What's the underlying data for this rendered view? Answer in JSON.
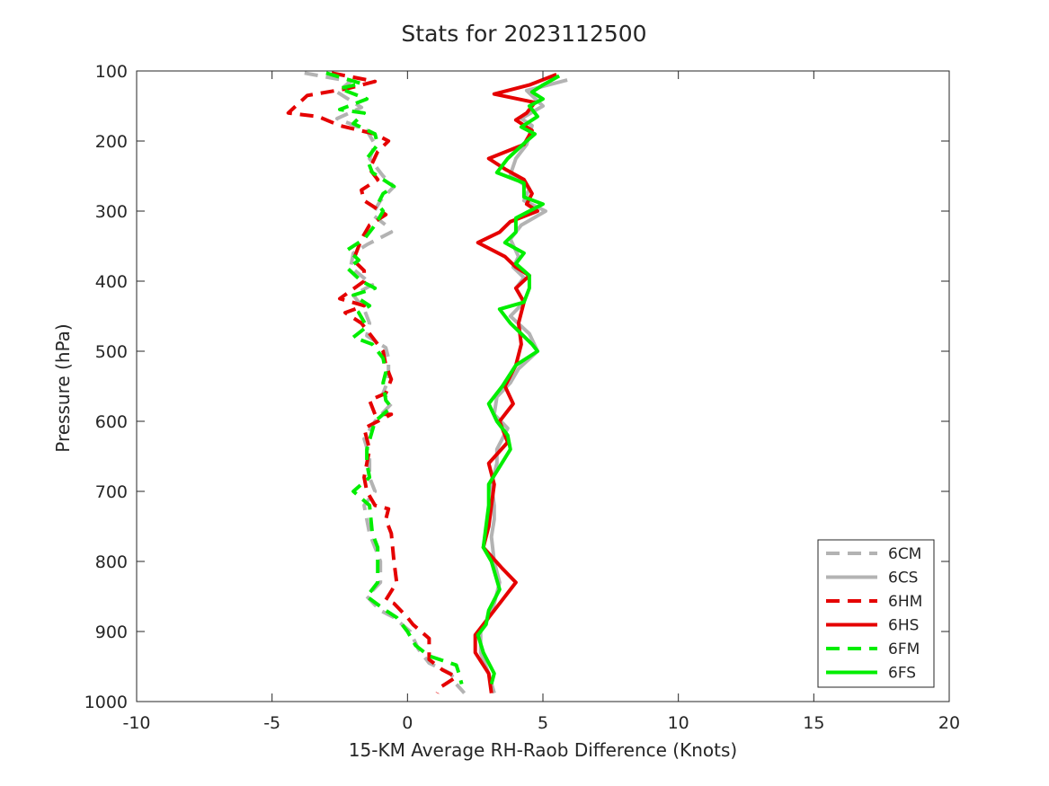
{
  "chart_data": {
    "type": "line",
    "title": "Stats for 2023112500",
    "xlabel": "15-KM Average RH-Raob Difference (Knots)",
    "ylabel": "Pressure (hPa)",
    "xlim": [
      -10,
      20
    ],
    "ylim": [
      100,
      1000
    ],
    "y_reversed": true,
    "grid": false,
    "legend_position": "bottom-right",
    "xticks": [
      -10,
      -5,
      0,
      5,
      10,
      15,
      20
    ],
    "yticks": [
      100,
      200,
      300,
      400,
      500,
      600,
      700,
      800,
      900,
      1000
    ],
    "series": [
      {
        "name": "6CM",
        "color": "#b3b3b3",
        "dash": "dashed",
        "points": [
          [
            -3.8,
            103
          ],
          [
            -2.1,
            115
          ],
          [
            -2.6,
            130
          ],
          [
            -1.7,
            152
          ],
          [
            -2.6,
            168
          ],
          [
            -1.5,
            185
          ],
          [
            -1.2,
            205
          ],
          [
            -1.4,
            225
          ],
          [
            -0.9,
            250
          ],
          [
            -0.5,
            265
          ],
          [
            -1.0,
            285
          ],
          [
            -1.3,
            305
          ],
          [
            -0.8,
            320
          ],
          [
            -0.6,
            330
          ],
          [
            -1.5,
            348
          ],
          [
            -2.0,
            360
          ],
          [
            -2.1,
            380
          ],
          [
            -1.3,
            405
          ],
          [
            -2.0,
            420
          ],
          [
            -1.6,
            440
          ],
          [
            -1.4,
            460
          ],
          [
            -1.5,
            478
          ],
          [
            -0.8,
            495
          ],
          [
            -0.7,
            510
          ],
          [
            -0.7,
            540
          ],
          [
            -0.9,
            560
          ],
          [
            -0.6,
            575
          ],
          [
            -1.2,
            600
          ],
          [
            -1.6,
            625
          ],
          [
            -1.4,
            650
          ],
          [
            -1.4,
            680
          ],
          [
            -1.2,
            700
          ],
          [
            -1.6,
            720
          ],
          [
            -1.5,
            740
          ],
          [
            -1.4,
            760
          ],
          [
            -1.2,
            780
          ],
          [
            -1.0,
            800
          ],
          [
            -1.0,
            830
          ],
          [
            -1.5,
            850
          ],
          [
            -1.0,
            870
          ],
          [
            -0.5,
            880
          ],
          [
            0.1,
            900
          ],
          [
            0.4,
            925
          ],
          [
            0.8,
            945
          ],
          [
            1.6,
            960
          ],
          [
            1.8,
            975
          ],
          [
            2.1,
            988
          ]
        ]
      },
      {
        "name": "6CS",
        "color": "#b3b3b3",
        "dash": "solid",
        "points": [
          [
            5.9,
            113
          ],
          [
            4.4,
            128
          ],
          [
            5.0,
            150
          ],
          [
            4.2,
            168
          ],
          [
            4.6,
            178
          ],
          [
            4.4,
            205
          ],
          [
            4.0,
            225
          ],
          [
            3.8,
            248
          ],
          [
            4.5,
            268
          ],
          [
            4.3,
            285
          ],
          [
            5.1,
            300
          ],
          [
            4.2,
            320
          ],
          [
            3.8,
            340
          ],
          [
            4.1,
            365
          ],
          [
            3.9,
            380
          ],
          [
            4.3,
            395
          ],
          [
            4.0,
            410
          ],
          [
            4.3,
            430
          ],
          [
            3.8,
            450
          ],
          [
            4.5,
            475
          ],
          [
            4.8,
            500
          ],
          [
            4.1,
            525
          ],
          [
            3.8,
            545
          ],
          [
            3.3,
            565
          ],
          [
            3.2,
            590
          ],
          [
            3.7,
            610
          ],
          [
            3.3,
            640
          ],
          [
            3.3,
            660
          ],
          [
            3.1,
            690
          ],
          [
            3.2,
            720
          ],
          [
            3.2,
            740
          ],
          [
            3.1,
            765
          ],
          [
            3.2,
            800
          ],
          [
            3.4,
            830
          ],
          [
            3.2,
            860
          ],
          [
            3.0,
            880
          ],
          [
            2.7,
            900
          ],
          [
            2.7,
            930
          ],
          [
            3.0,
            960
          ],
          [
            3.2,
            988
          ]
        ]
      },
      {
        "name": "6HM",
        "color": "#e50000",
        "dash": "dashed",
        "points": [
          [
            -2.8,
            103
          ],
          [
            -1.2,
            115
          ],
          [
            -2.2,
            125
          ],
          [
            -3.7,
            135
          ],
          [
            -4.4,
            160
          ],
          [
            -3.3,
            165
          ],
          [
            -2.5,
            178
          ],
          [
            -1.2,
            190
          ],
          [
            -0.7,
            200
          ],
          [
            -1.1,
            215
          ],
          [
            -1.4,
            240
          ],
          [
            -1.1,
            255
          ],
          [
            -1.7,
            270
          ],
          [
            -1.6,
            285
          ],
          [
            -1.2,
            295
          ],
          [
            -0.8,
            305
          ],
          [
            -1.4,
            320
          ],
          [
            -1.7,
            340
          ],
          [
            -2.0,
            370
          ],
          [
            -1.6,
            385
          ],
          [
            -1.6,
            400
          ],
          [
            -2.5,
            425
          ],
          [
            -1.6,
            435
          ],
          [
            -2.3,
            445
          ],
          [
            -1.7,
            460
          ],
          [
            -1.3,
            480
          ],
          [
            -0.9,
            500
          ],
          [
            -0.8,
            520
          ],
          [
            -0.6,
            540
          ],
          [
            -0.8,
            560
          ],
          [
            -1.4,
            570
          ],
          [
            -1.2,
            590
          ],
          [
            -0.6,
            590
          ],
          [
            -1.6,
            610
          ],
          [
            -1.4,
            640
          ],
          [
            -1.5,
            660
          ],
          [
            -1.6,
            680
          ],
          [
            -1.5,
            700
          ],
          [
            -1.2,
            720
          ],
          [
            -0.7,
            725
          ],
          [
            -0.8,
            740
          ],
          [
            -0.6,
            760
          ],
          [
            -0.5,
            800
          ],
          [
            -0.4,
            830
          ],
          [
            -0.8,
            855
          ],
          [
            -0.5,
            860
          ],
          [
            0.0,
            880
          ],
          [
            0.2,
            890
          ],
          [
            0.8,
            910
          ],
          [
            0.8,
            940
          ],
          [
            1.3,
            955
          ],
          [
            1.8,
            965
          ],
          [
            1.2,
            980
          ],
          [
            1.1,
            988
          ]
        ]
      },
      {
        "name": "6HS",
        "color": "#e50000",
        "dash": "solid",
        "points": [
          [
            5.5,
            105
          ],
          [
            4.5,
            120
          ],
          [
            3.2,
            133
          ],
          [
            4.7,
            145
          ],
          [
            4.4,
            160
          ],
          [
            4.0,
            170
          ],
          [
            4.6,
            185
          ],
          [
            4.3,
            205
          ],
          [
            3.0,
            225
          ],
          [
            3.6,
            240
          ],
          [
            4.3,
            255
          ],
          [
            4.6,
            275
          ],
          [
            4.4,
            290
          ],
          [
            4.8,
            300
          ],
          [
            3.8,
            315
          ],
          [
            3.4,
            330
          ],
          [
            2.6,
            345
          ],
          [
            3.6,
            365
          ],
          [
            4.0,
            380
          ],
          [
            4.5,
            392
          ],
          [
            4.0,
            410
          ],
          [
            4.3,
            430
          ],
          [
            4.1,
            460
          ],
          [
            4.2,
            490
          ],
          [
            4.0,
            520
          ],
          [
            3.6,
            550
          ],
          [
            3.9,
            575
          ],
          [
            3.4,
            600
          ],
          [
            3.7,
            630
          ],
          [
            3.0,
            660
          ],
          [
            3.2,
            690
          ],
          [
            3.1,
            720
          ],
          [
            3.0,
            750
          ],
          [
            2.8,
            780
          ],
          [
            3.5,
            810
          ],
          [
            4.0,
            830
          ],
          [
            3.4,
            860
          ],
          [
            2.8,
            890
          ],
          [
            2.5,
            905
          ],
          [
            2.5,
            930
          ],
          [
            3.0,
            960
          ],
          [
            3.1,
            988
          ]
        ]
      },
      {
        "name": "6FM",
        "color": "#00ee00",
        "dash": "dashed",
        "points": [
          [
            -3.0,
            103
          ],
          [
            -1.7,
            118
          ],
          [
            -2.5,
            125
          ],
          [
            -1.5,
            140
          ],
          [
            -2.5,
            155
          ],
          [
            -1.6,
            160
          ],
          [
            -2.0,
            175
          ],
          [
            -1.2,
            190
          ],
          [
            -1.1,
            205
          ],
          [
            -1.5,
            225
          ],
          [
            -1.3,
            245
          ],
          [
            -0.5,
            265
          ],
          [
            -0.9,
            275
          ],
          [
            -1.1,
            290
          ],
          [
            -0.9,
            300
          ],
          [
            -1.2,
            320
          ],
          [
            -1.6,
            340
          ],
          [
            -2.2,
            355
          ],
          [
            -1.8,
            370
          ],
          [
            -2.2,
            382
          ],
          [
            -1.7,
            400
          ],
          [
            -1.2,
            410
          ],
          [
            -2.0,
            420
          ],
          [
            -1.4,
            435
          ],
          [
            -1.8,
            445
          ],
          [
            -1.5,
            465
          ],
          [
            -2.0,
            480
          ],
          [
            -1.3,
            490
          ],
          [
            -0.9,
            510
          ],
          [
            -0.8,
            530
          ],
          [
            -0.9,
            545
          ],
          [
            -0.8,
            570
          ],
          [
            -0.6,
            580
          ],
          [
            -1.2,
            600
          ],
          [
            -1.5,
            640
          ],
          [
            -1.5,
            660
          ],
          [
            -1.4,
            680
          ],
          [
            -1.7,
            690
          ],
          [
            -2.0,
            700
          ],
          [
            -1.4,
            720
          ],
          [
            -1.3,
            760
          ],
          [
            -1.1,
            780
          ],
          [
            -1.1,
            800
          ],
          [
            -1.1,
            830
          ],
          [
            -1.5,
            850
          ],
          [
            -0.8,
            870
          ],
          [
            -0.4,
            880
          ],
          [
            0.0,
            900
          ],
          [
            0.3,
            920
          ],
          [
            0.8,
            935
          ],
          [
            1.8,
            948
          ],
          [
            1.9,
            960
          ],
          [
            2.0,
            975
          ]
        ]
      },
      {
        "name": "6FS",
        "color": "#00ee00",
        "dash": "solid",
        "points": [
          [
            5.6,
            107
          ],
          [
            5.0,
            120
          ],
          [
            4.6,
            130
          ],
          [
            5.0,
            140
          ],
          [
            4.5,
            150
          ],
          [
            4.8,
            165
          ],
          [
            4.2,
            180
          ],
          [
            4.7,
            190
          ],
          [
            4.4,
            200
          ],
          [
            3.7,
            225
          ],
          [
            3.3,
            245
          ],
          [
            4.3,
            260
          ],
          [
            4.3,
            280
          ],
          [
            5.0,
            290
          ],
          [
            4.0,
            310
          ],
          [
            4.0,
            330
          ],
          [
            3.6,
            345
          ],
          [
            4.3,
            360
          ],
          [
            4.0,
            375
          ],
          [
            4.5,
            392
          ],
          [
            4.5,
            410
          ],
          [
            4.3,
            430
          ],
          [
            3.4,
            440
          ],
          [
            3.8,
            460
          ],
          [
            4.6,
            490
          ],
          [
            4.8,
            500
          ],
          [
            4.0,
            520
          ],
          [
            3.5,
            550
          ],
          [
            3.0,
            575
          ],
          [
            3.3,
            600
          ],
          [
            3.7,
            620
          ],
          [
            3.8,
            640
          ],
          [
            3.4,
            665
          ],
          [
            3.0,
            690
          ],
          [
            3.0,
            720
          ],
          [
            2.9,
            750
          ],
          [
            2.8,
            780
          ],
          [
            3.1,
            800
          ],
          [
            3.4,
            840
          ],
          [
            3.0,
            870
          ],
          [
            2.9,
            890
          ],
          [
            2.6,
            905
          ],
          [
            2.8,
            930
          ],
          [
            3.2,
            960
          ],
          [
            3.1,
            975
          ]
        ]
      }
    ]
  }
}
